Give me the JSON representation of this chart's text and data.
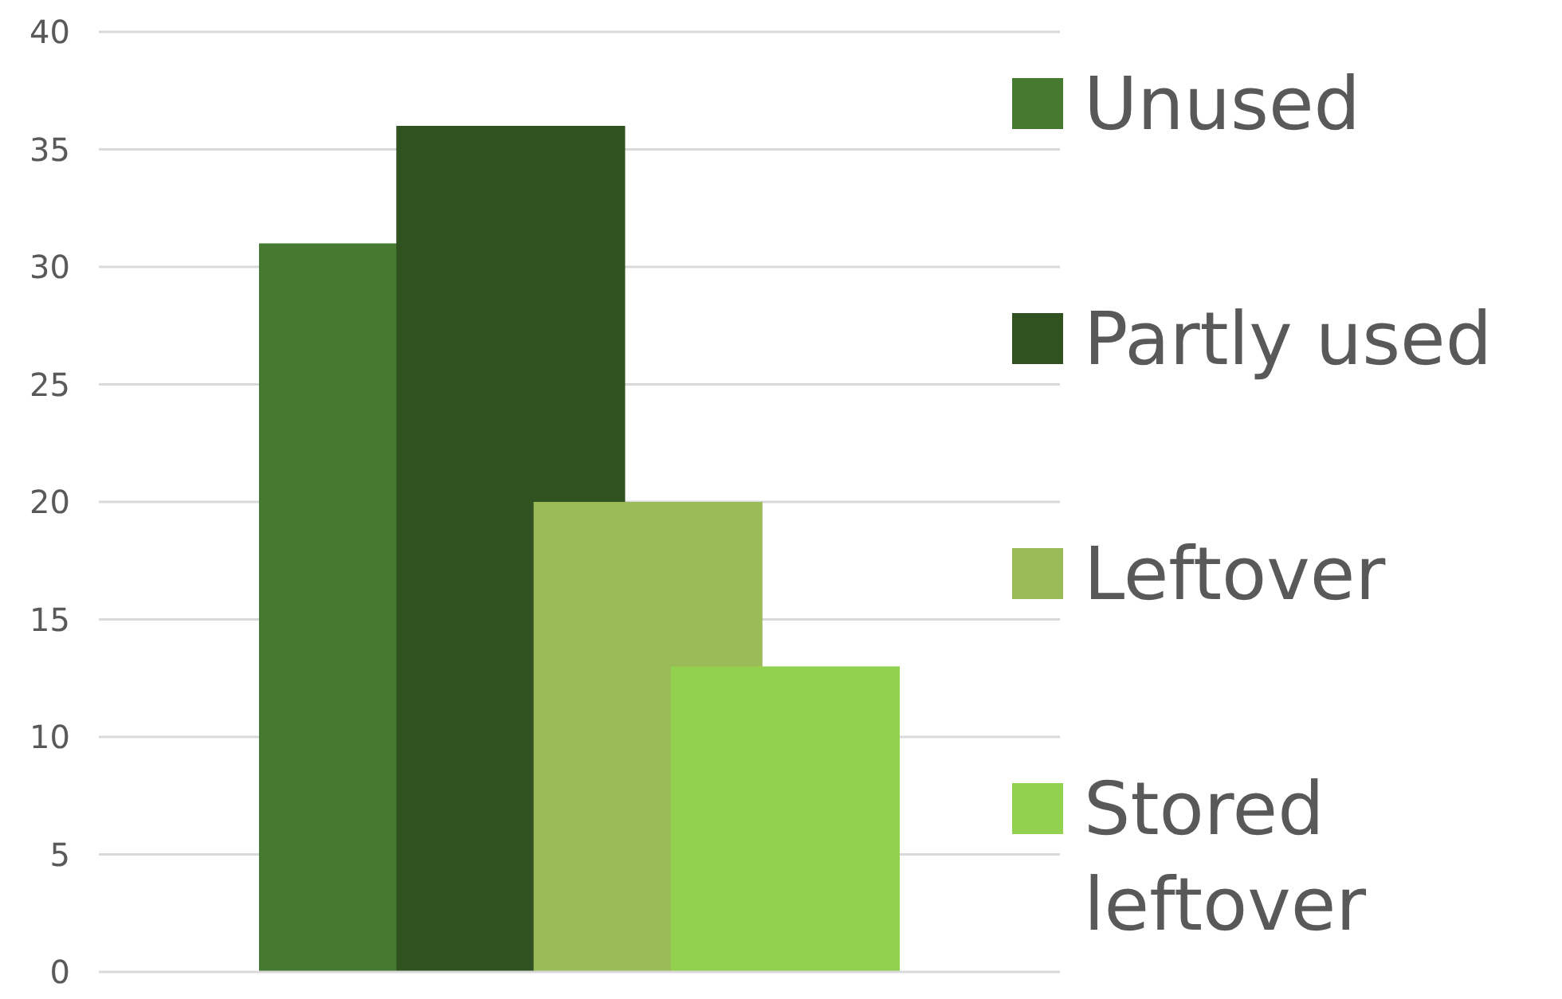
{
  "chart_data": {
    "type": "bar",
    "categories": [
      null
    ],
    "series": [
      {
        "name": "Unused",
        "color": "#467a30",
        "values": [
          31
        ]
      },
      {
        "name": "Partly used",
        "color": "#2f5220",
        "values": [
          36
        ]
      },
      {
        "name": "Leftover",
        "color": "#9bbb59",
        "values": [
          20
        ]
      },
      {
        "name": "Stored leftover",
        "color": "#92d050",
        "values": [
          13
        ]
      }
    ],
    "ylim": [
      0,
      40
    ],
    "yticks": [
      0,
      5,
      10,
      15,
      20,
      25,
      30,
      35,
      40
    ],
    "grid": "y",
    "legend": "right"
  }
}
